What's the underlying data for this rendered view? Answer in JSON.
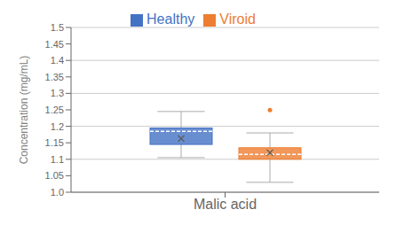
{
  "chart_data": {
    "type": "box",
    "categories": [
      "Malic acid"
    ],
    "ylabel": "Concentration (mg/mL)",
    "ylim": [
      1.0,
      1.5
    ],
    "yticks": [
      {
        "value": 1.0,
        "label": "1.0"
      },
      1.05,
      1.1,
      1.15,
      1.2,
      1.25,
      1.3,
      1.35,
      1.4,
      1.45,
      {
        "value": 1.5,
        "label": "1.5"
      }
    ],
    "grid": true,
    "legend": "top",
    "series": [
      {
        "name": "Healthy",
        "color": "#4472C4",
        "q1": 1.145,
        "median": 1.185,
        "q3": 1.195,
        "whisker_low": 1.105,
        "whisker_high": 1.245,
        "mean": 1.163,
        "fliers": []
      },
      {
        "name": "Viroid",
        "color": "#ED7D31",
        "q1": 1.1,
        "median": 1.115,
        "q3": 1.135,
        "whisker_low": 1.03,
        "whisker_high": 1.18,
        "mean": 1.12,
        "fliers": [
          1.249
        ]
      }
    ]
  }
}
